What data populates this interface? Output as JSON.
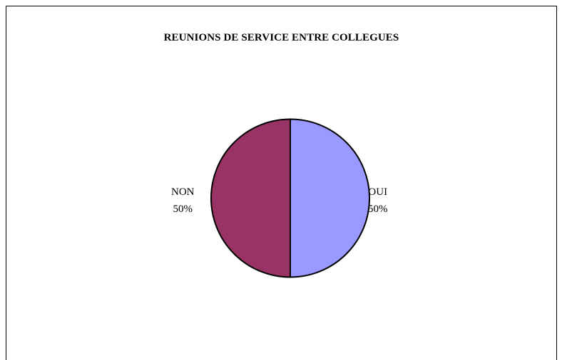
{
  "chart_data": {
    "type": "pie",
    "title": "REUNIONS DE SERVICE ENTRE COLLEGUES",
    "slices": [
      {
        "label": "OUI",
        "value": 50,
        "percent_label": "50%",
        "color": "#9999ff"
      },
      {
        "label": "NON",
        "value": 50,
        "percent_label": "50%",
        "color": "#993366"
      }
    ],
    "start_angle": "12 o'clock",
    "direction": "clockwise",
    "legend": "none"
  }
}
